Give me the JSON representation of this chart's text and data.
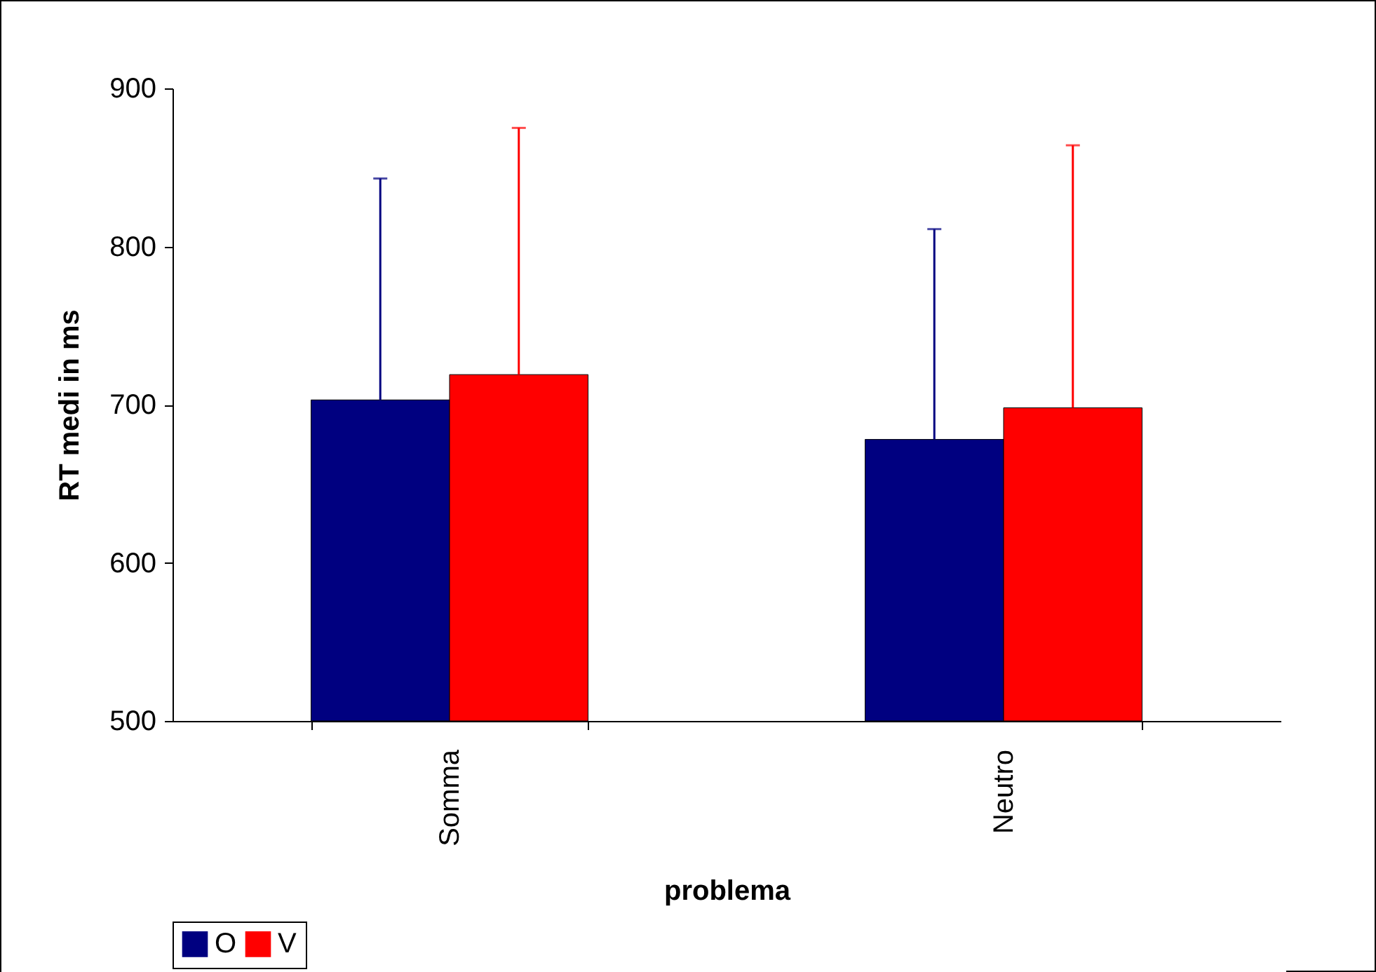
{
  "chart_data": {
    "type": "bar",
    "xlabel": "problema",
    "ylabel": "RT medi in ms",
    "categories": [
      "Somma",
      "Neutro"
    ],
    "series": [
      {
        "name": "O",
        "color": "#000080",
        "values": [
          703,
          678
        ],
        "errors": [
          [
            703,
            843
          ],
          [
            678,
            811
          ]
        ]
      },
      {
        "name": "V",
        "color": "#ff0000",
        "values": [
          719,
          698
        ],
        "errors": [
          [
            719,
            875
          ],
          [
            698,
            864
          ]
        ]
      }
    ],
    "ylim": [
      500,
      900
    ],
    "yticks": [
      500,
      600,
      700,
      800,
      900
    ],
    "grid": false,
    "legend": "bottom"
  }
}
